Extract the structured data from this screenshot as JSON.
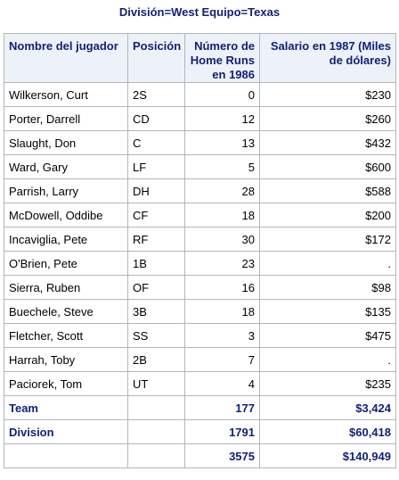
{
  "title": "División=West Equipo=Texas",
  "columns": [
    "Nombre del jugador",
    "Posición",
    "Número de Home Runs en 1986",
    "Salario en 1987 (Miles de dólares)"
  ],
  "rows": [
    {
      "name": "Wilkerson, Curt",
      "pos": "2S",
      "hr": "0",
      "salary": "$230"
    },
    {
      "name": "Porter, Darrell",
      "pos": "CD",
      "hr": "12",
      "salary": "$260"
    },
    {
      "name": "Slaught, Don",
      "pos": "C",
      "hr": "13",
      "salary": "$432"
    },
    {
      "name": "Ward, Gary",
      "pos": "LF",
      "hr": "5",
      "salary": "$600"
    },
    {
      "name": "Parrish, Larry",
      "pos": "DH",
      "hr": "28",
      "salary": "$588"
    },
    {
      "name": "McDowell, Oddibe",
      "pos": "CF",
      "hr": "18",
      "salary": "$200"
    },
    {
      "name": "Incaviglia, Pete",
      "pos": "RF",
      "hr": "30",
      "salary": "$172"
    },
    {
      "name": "O'Brien, Pete",
      "pos": "1B",
      "hr": "23",
      "salary": "."
    },
    {
      "name": "Sierra, Ruben",
      "pos": "OF",
      "hr": "16",
      "salary": "$98"
    },
    {
      "name": "Buechele, Steve",
      "pos": "3B",
      "hr": "18",
      "salary": "$135"
    },
    {
      "name": "Fletcher, Scott",
      "pos": "SS",
      "hr": "3",
      "salary": "$475"
    },
    {
      "name": "Harrah, Toby",
      "pos": "2B",
      "hr": "7",
      "salary": "."
    },
    {
      "name": "Paciorek, Tom",
      "pos": "UT",
      "hr": "4",
      "salary": "$235"
    }
  ],
  "summary": [
    {
      "label": "Team",
      "pos": "",
      "hr": "177",
      "salary": "$3,424"
    },
    {
      "label": "Division",
      "pos": "",
      "hr": "1791",
      "salary": "$60,418"
    },
    {
      "label": "",
      "pos": "",
      "hr": "3575",
      "salary": "$140,949"
    }
  ]
}
